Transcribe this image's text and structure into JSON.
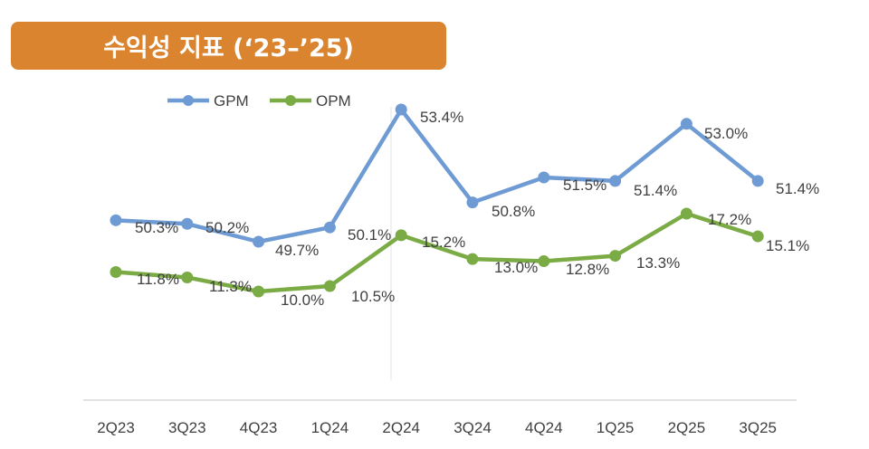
{
  "title": "수익성 지표 (‘23–’25)",
  "colors": {
    "banner": "#db8430",
    "banner_text": "#ffffff",
    "gpm": "#6f9bd4",
    "opm": "#7aab45",
    "axis": "#d9d9d9",
    "text": "#404040"
  },
  "chart_data": {
    "type": "line",
    "title": "수익성 지표 (‘23–’25)",
    "categories": [
      "2Q23",
      "3Q23",
      "4Q23",
      "1Q24",
      "2Q24",
      "3Q24",
      "4Q24",
      "1Q25",
      "2Q25",
      "3Q25"
    ],
    "series": [
      {
        "name": "GPM",
        "values": [
          50.3,
          50.2,
          49.7,
          50.1,
          53.4,
          50.8,
          51.5,
          51.4,
          53.0,
          51.4
        ],
        "labels": [
          "50.3%",
          "50.2%",
          "49.7%",
          "50.1%",
          "53.4%",
          "50.8%",
          "51.5%",
          "51.4%",
          "53.0%",
          "51.4%"
        ]
      },
      {
        "name": "OPM",
        "values": [
          11.8,
          11.3,
          10.0,
          10.5,
          15.2,
          13.0,
          12.8,
          13.3,
          17.2,
          15.1
        ],
        "labels": [
          "11.8%",
          "11.3%",
          "10.0%",
          "10.5%",
          "15.2%",
          "13.0%",
          "12.8%",
          "13.3%",
          "17.2%",
          "15.1%"
        ]
      }
    ],
    "legend": "top-left",
    "grid": false,
    "xlabel": "",
    "ylabel": "",
    "note": "Two separate value scales (GPM upper band, OPM lower band); no y-axis ticks shown"
  }
}
